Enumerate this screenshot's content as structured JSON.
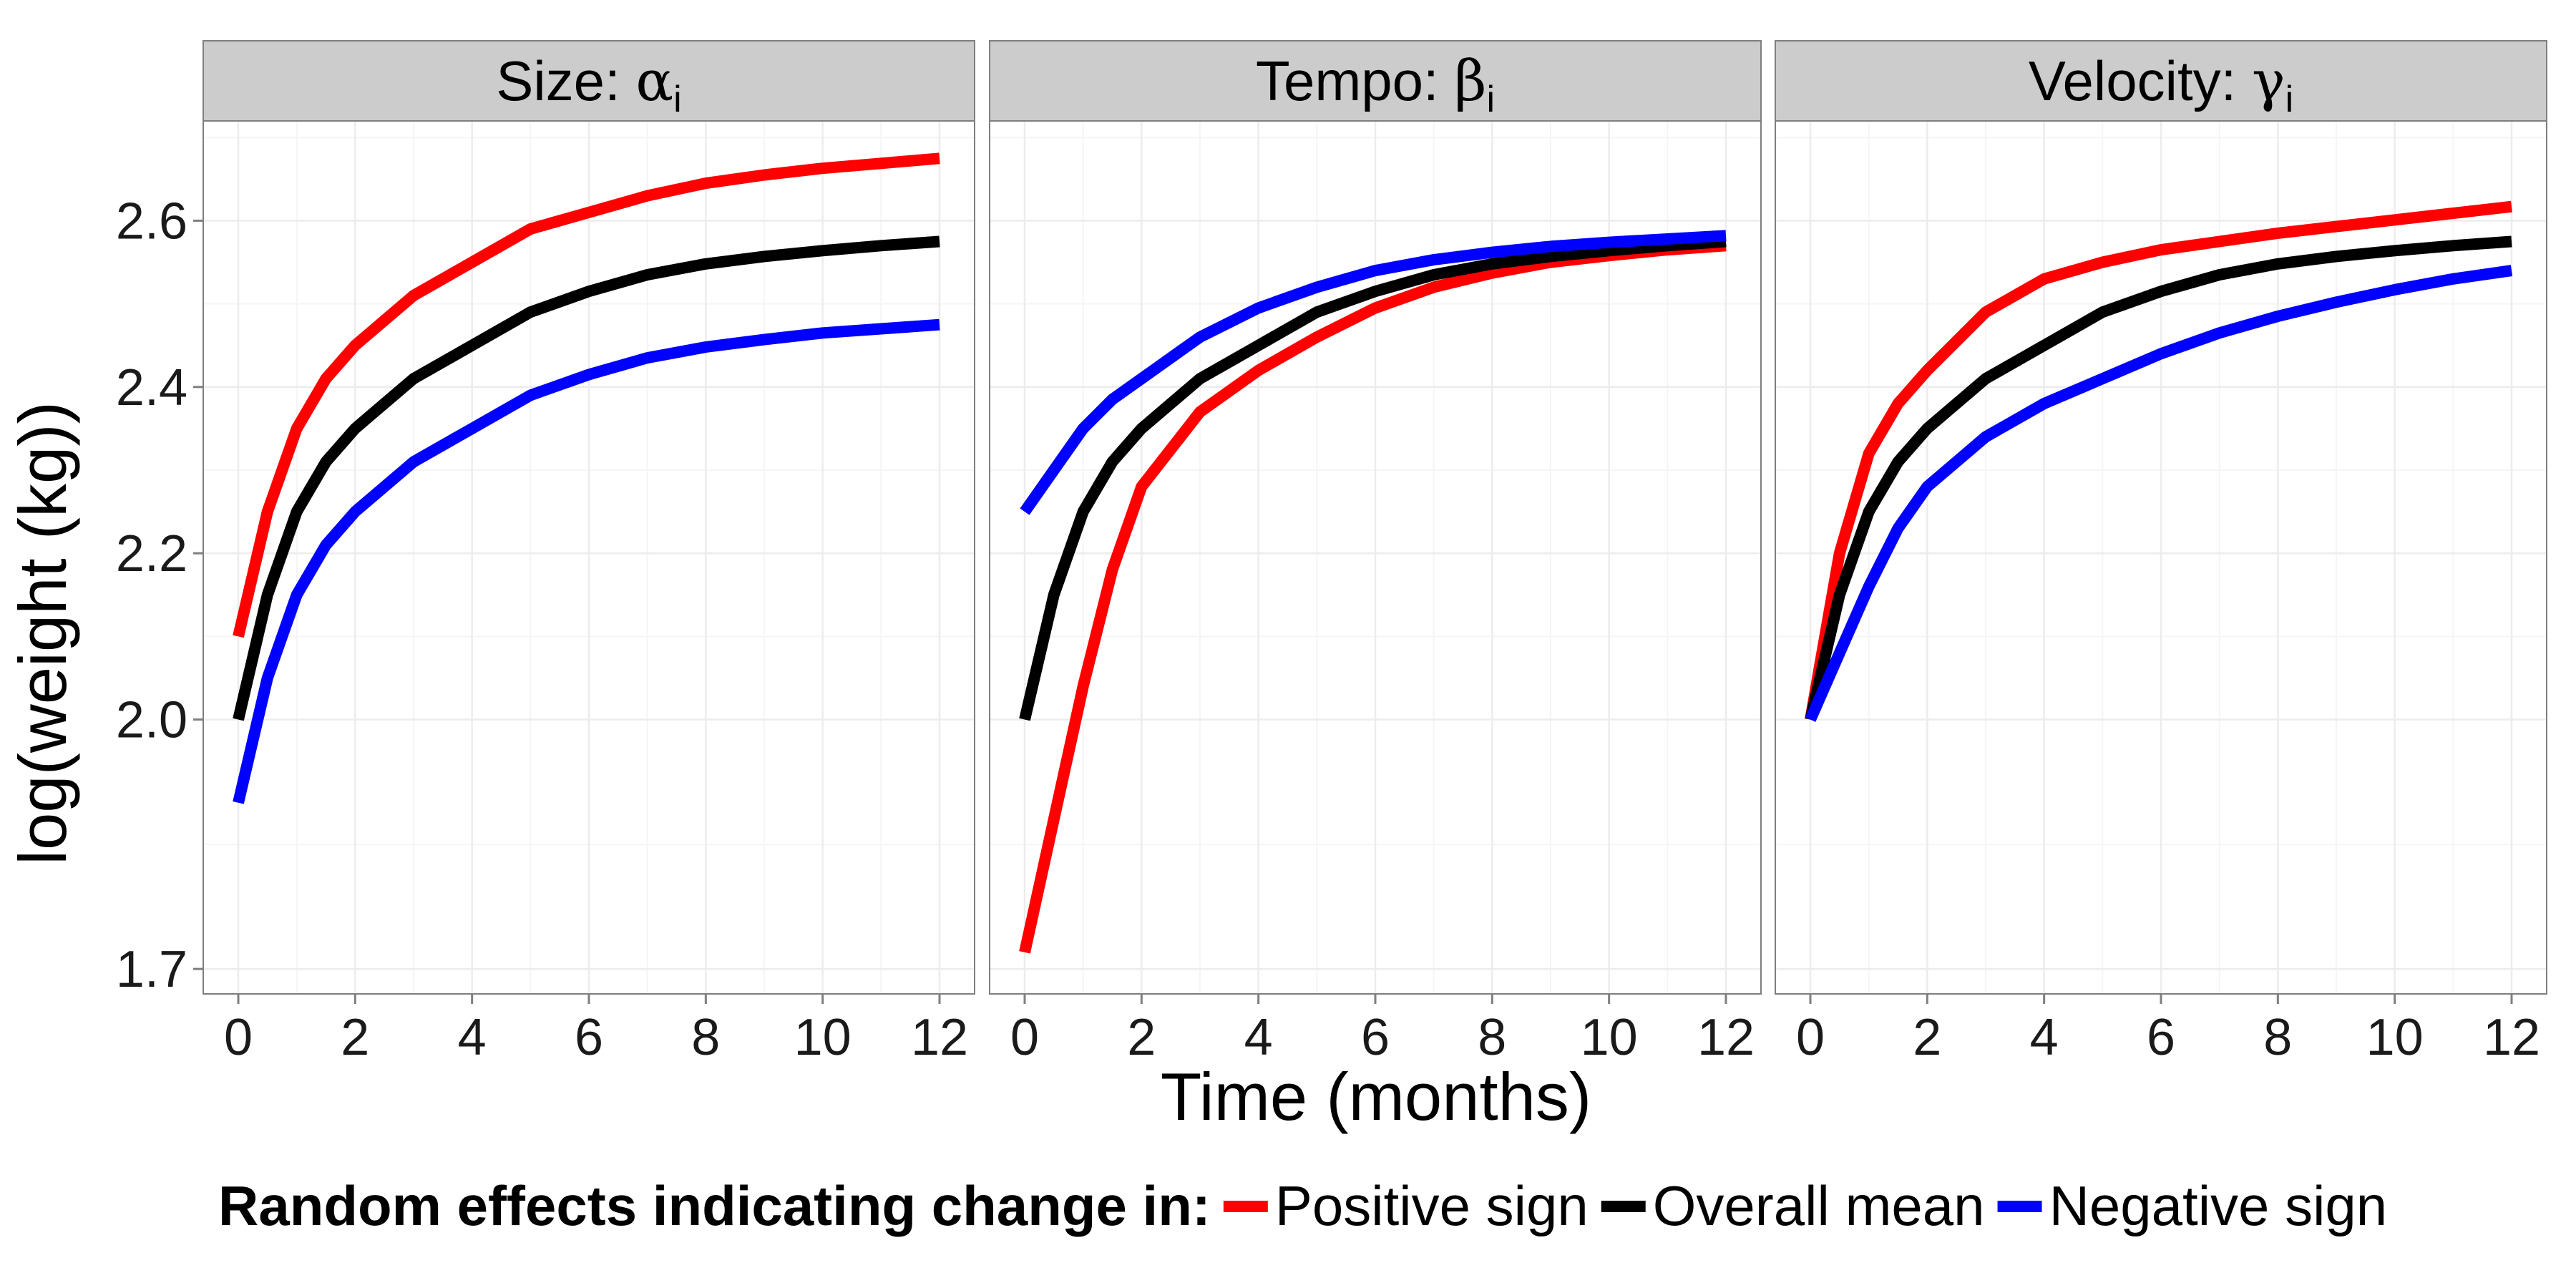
{
  "chart_data": {
    "type": "line",
    "xlabel": "Time (months)",
    "ylabel": "log(weight (kg))",
    "xlim": [
      -0.6,
      12.6
    ],
    "ylim": [
      1.67,
      2.72
    ],
    "x_ticks": [
      0,
      2,
      4,
      6,
      8,
      10,
      12
    ],
    "x_tick_labels": [
      "0",
      "2",
      "4",
      "6",
      "8",
      "10",
      "12"
    ],
    "y_ticks": [
      1.7,
      2.0,
      2.2,
      2.4,
      2.6
    ],
    "y_tick_labels": [
      "1.7",
      "2.0",
      "2.2",
      "2.4",
      "2.6"
    ],
    "grid": true,
    "legend": {
      "position": "bottom",
      "title": "Random effects indicating change in:",
      "entries": [
        {
          "label": "Positive sign",
          "color": "#ff0000"
        },
        {
          "label": "Overall mean",
          "color": "#000000"
        },
        {
          "label": "Negative sign",
          "color": "#0000ff"
        }
      ]
    },
    "x": [
      0,
      0.5,
      1,
      1.5,
      2,
      3,
      4,
      5,
      6,
      7,
      8,
      9,
      10,
      11,
      12
    ],
    "panels": [
      {
        "title_text": "Size: ",
        "title_symbol": "α",
        "title_sub": "i",
        "series": [
          {
            "name": "Positive sign",
            "color": "#ff0000",
            "values": [
              2.1,
              2.25,
              2.35,
              2.41,
              2.45,
              2.51,
              2.55,
              2.59,
              2.61,
              2.63,
              2.645,
              2.655,
              2.663,
              2.669,
              2.675
            ]
          },
          {
            "name": "Overall mean",
            "color": "#000000",
            "values": [
              2.0,
              2.15,
              2.25,
              2.31,
              2.35,
              2.41,
              2.45,
              2.49,
              2.515,
              2.535,
              2.548,
              2.557,
              2.564,
              2.57,
              2.575
            ]
          },
          {
            "name": "Negative sign",
            "color": "#0000ff",
            "values": [
              1.9,
              2.05,
              2.15,
              2.21,
              2.25,
              2.31,
              2.35,
              2.39,
              2.415,
              2.435,
              2.448,
              2.457,
              2.465,
              2.47,
              2.475
            ]
          }
        ]
      },
      {
        "title_text": "Tempo: ",
        "title_symbol": "β",
        "title_sub": "i",
        "series": [
          {
            "name": "Positive sign",
            "color": "#ff0000",
            "values": [
              1.72,
              1.88,
              2.04,
              2.18,
              2.28,
              2.37,
              2.42,
              2.46,
              2.495,
              2.52,
              2.537,
              2.55,
              2.558,
              2.565,
              2.57
            ]
          },
          {
            "name": "Overall mean",
            "color": "#000000",
            "values": [
              2.0,
              2.15,
              2.25,
              2.31,
              2.35,
              2.41,
              2.45,
              2.49,
              2.515,
              2.535,
              2.548,
              2.557,
              2.564,
              2.57,
              2.575
            ]
          },
          {
            "name": "Negative sign",
            "color": "#0000ff",
            "values": [
              2.25,
              2.3,
              2.35,
              2.385,
              2.41,
              2.46,
              2.495,
              2.52,
              2.54,
              2.553,
              2.562,
              2.569,
              2.574,
              2.578,
              2.582
            ]
          }
        ]
      },
      {
        "title_text": "Velocity: ",
        "title_symbol": "γ",
        "title_sub": "i",
        "series": [
          {
            "name": "Positive sign",
            "color": "#ff0000",
            "values": [
              2.0,
              2.2,
              2.32,
              2.38,
              2.42,
              2.49,
              2.53,
              2.55,
              2.565,
              2.575,
              2.585,
              2.593,
              2.601,
              2.609,
              2.617
            ]
          },
          {
            "name": "Overall mean",
            "color": "#000000",
            "values": [
              2.0,
              2.15,
              2.25,
              2.31,
              2.35,
              2.41,
              2.45,
              2.49,
              2.515,
              2.535,
              2.548,
              2.557,
              2.564,
              2.57,
              2.575
            ]
          },
          {
            "name": "Negative sign",
            "color": "#0000ff",
            "values": [
              2.0,
              2.08,
              2.16,
              2.23,
              2.28,
              2.34,
              2.38,
              2.41,
              2.44,
              2.465,
              2.485,
              2.502,
              2.517,
              2.53,
              2.54
            ]
          }
        ]
      }
    ]
  }
}
